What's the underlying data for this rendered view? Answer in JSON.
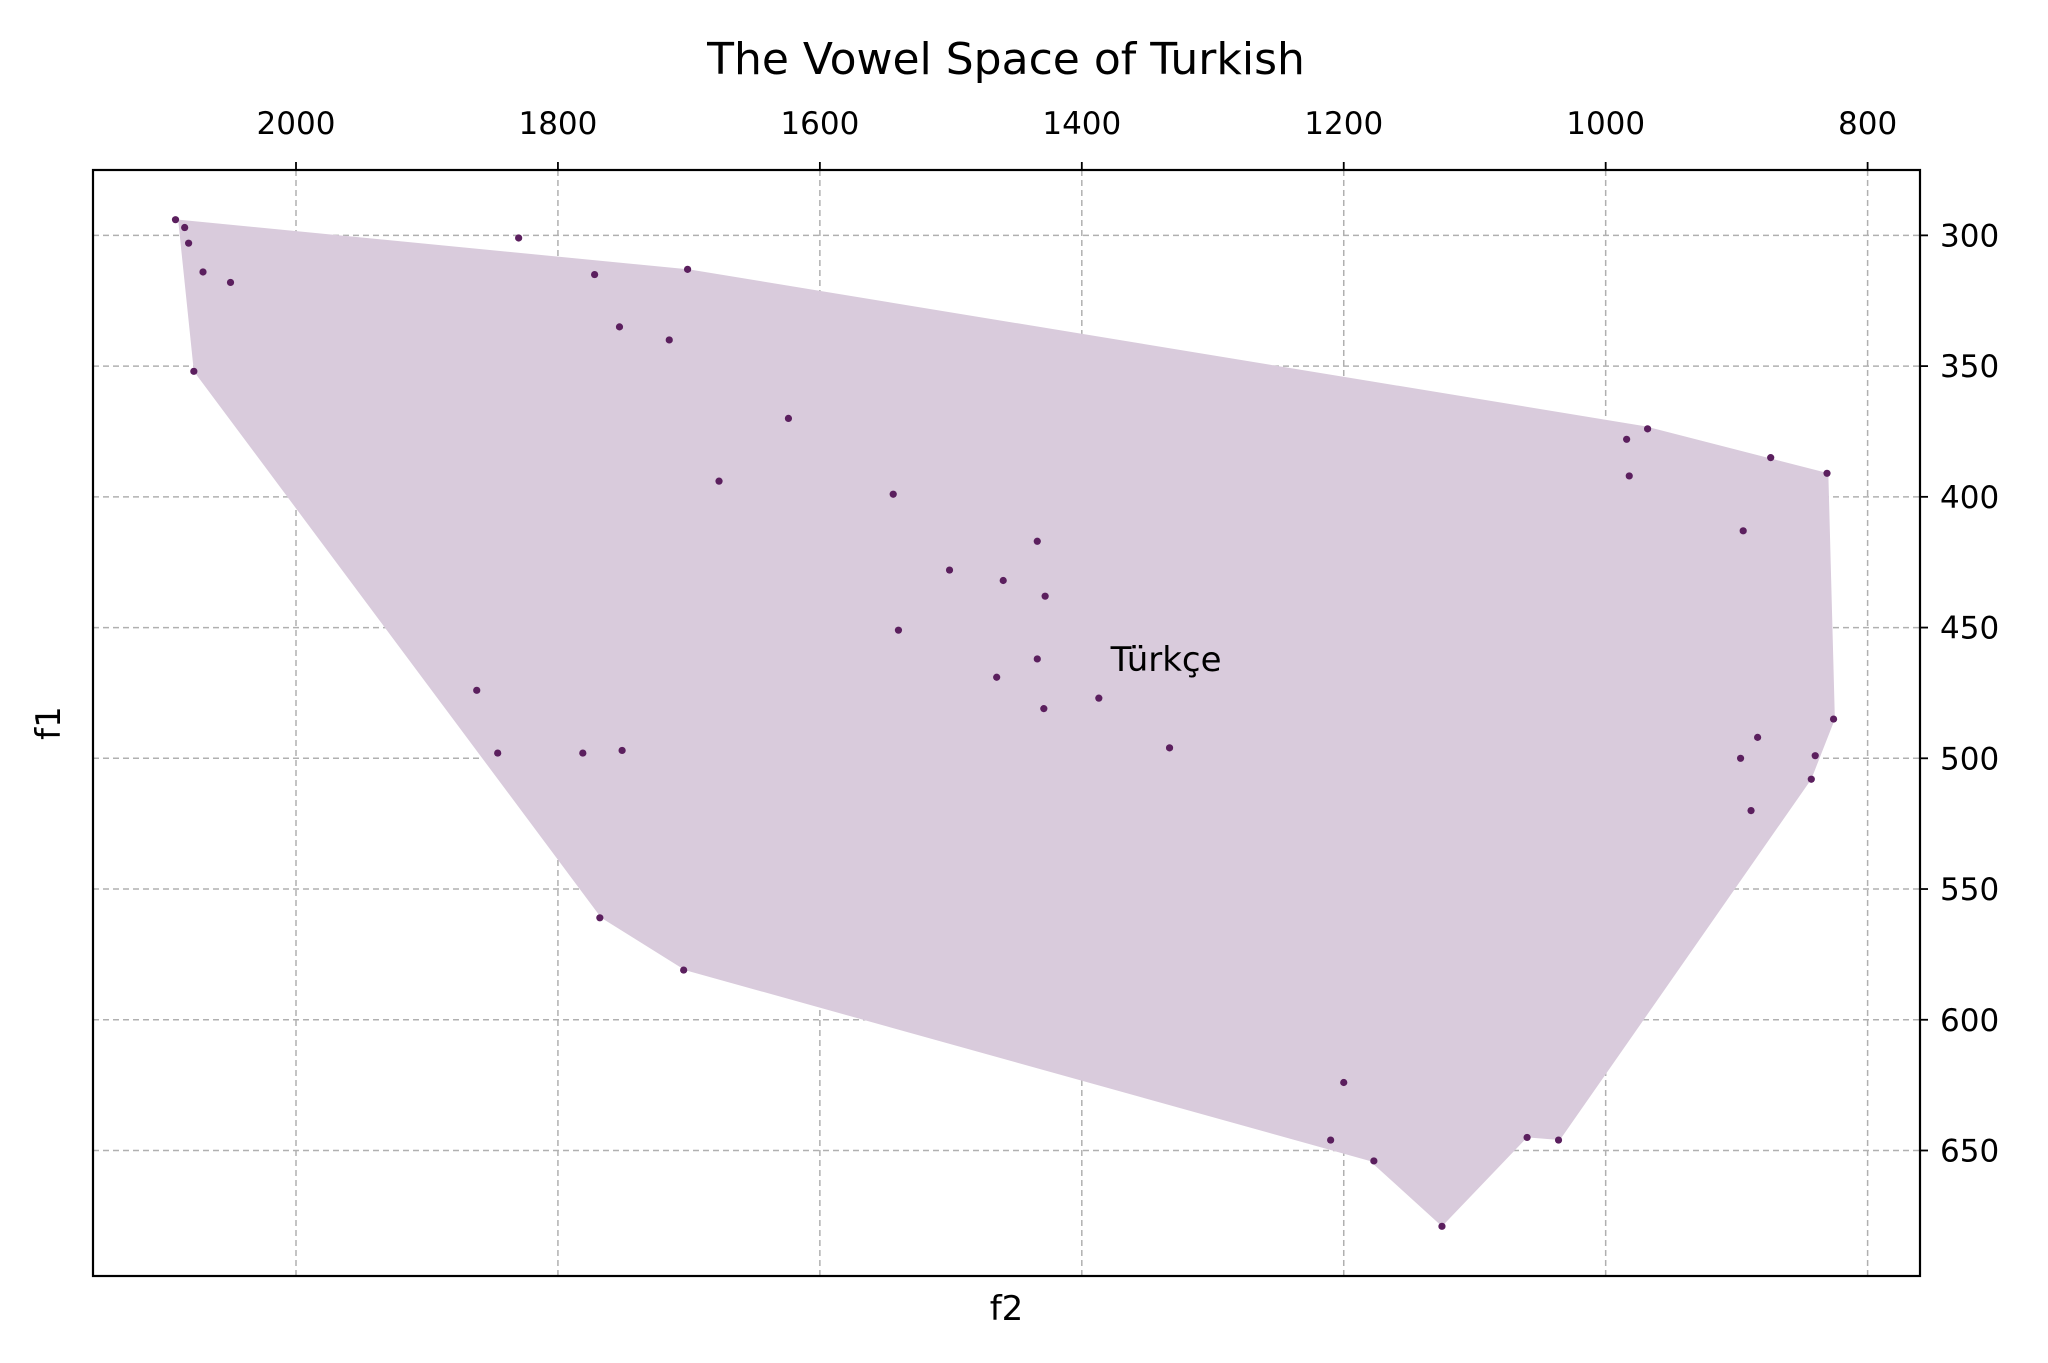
{
  "chart_data": {
    "type": "scatter",
    "title": "The Vowel Space of Turkish",
    "xlabel": "f2",
    "ylabel": "f1",
    "x_axis_position": "top",
    "y_axis_position": "right",
    "x_inverted": true,
    "y_inverted": true,
    "xlim": [
      2155,
      760
    ],
    "ylim": [
      275,
      698
    ],
    "x_ticks": [
      2000,
      1800,
      1600,
      1400,
      1200,
      1000,
      800
    ],
    "y_ticks": [
      300,
      350,
      400,
      450,
      500,
      550,
      600,
      650
    ],
    "grid": true,
    "hull_color": "#d9cbdc",
    "point_color": "#5b1f5e",
    "annotation": {
      "text": "Türkçe",
      "x": 1378,
      "y": 462
    },
    "hull": [
      [
        2090,
        294
      ],
      [
        1700,
        313
      ],
      [
        970,
        373
      ],
      [
        830,
        391
      ],
      [
        825,
        485
      ],
      [
        843,
        508
      ],
      [
        1035,
        646
      ],
      [
        1060,
        645
      ],
      [
        1125,
        679
      ],
      [
        1180,
        654
      ],
      [
        1703,
        581
      ],
      [
        1767,
        561
      ],
      [
        2078,
        352
      ]
    ],
    "points": [
      {
        "x": 2092,
        "y": 294
      },
      {
        "x": 2085,
        "y": 297
      },
      {
        "x": 2082,
        "y": 303
      },
      {
        "x": 2071,
        "y": 314
      },
      {
        "x": 2050,
        "y": 318
      },
      {
        "x": 2078,
        "y": 352
      },
      {
        "x": 1830,
        "y": 301
      },
      {
        "x": 1772,
        "y": 315
      },
      {
        "x": 1701,
        "y": 313
      },
      {
        "x": 1753,
        "y": 335
      },
      {
        "x": 1715,
        "y": 340
      },
      {
        "x": 1677,
        "y": 394
      },
      {
        "x": 1624,
        "y": 370
      },
      {
        "x": 1544,
        "y": 399
      },
      {
        "x": 1501,
        "y": 428
      },
      {
        "x": 1460,
        "y": 432
      },
      {
        "x": 1434,
        "y": 417
      },
      {
        "x": 1428,
        "y": 438
      },
      {
        "x": 1540,
        "y": 451
      },
      {
        "x": 1434,
        "y": 462
      },
      {
        "x": 1465,
        "y": 469
      },
      {
        "x": 1429,
        "y": 481
      },
      {
        "x": 1387,
        "y": 477
      },
      {
        "x": 1333,
        "y": 496
      },
      {
        "x": 1862,
        "y": 474
      },
      {
        "x": 1846,
        "y": 498
      },
      {
        "x": 1781,
        "y": 498
      },
      {
        "x": 1751,
        "y": 497
      },
      {
        "x": 1768,
        "y": 561
      },
      {
        "x": 1704,
        "y": 581
      },
      {
        "x": 984,
        "y": 378
      },
      {
        "x": 968,
        "y": 374
      },
      {
        "x": 982,
        "y": 392
      },
      {
        "x": 874,
        "y": 385
      },
      {
        "x": 831,
        "y": 391
      },
      {
        "x": 895,
        "y": 413
      },
      {
        "x": 884,
        "y": 492
      },
      {
        "x": 897,
        "y": 500
      },
      {
        "x": 889,
        "y": 520
      },
      {
        "x": 840,
        "y": 499
      },
      {
        "x": 843,
        "y": 508
      },
      {
        "x": 826,
        "y": 485
      },
      {
        "x": 1200,
        "y": 624
      },
      {
        "x": 1210,
        "y": 646
      },
      {
        "x": 1177,
        "y": 654
      },
      {
        "x": 1060,
        "y": 645
      },
      {
        "x": 1036,
        "y": 646
      },
      {
        "x": 1125,
        "y": 679
      }
    ]
  }
}
